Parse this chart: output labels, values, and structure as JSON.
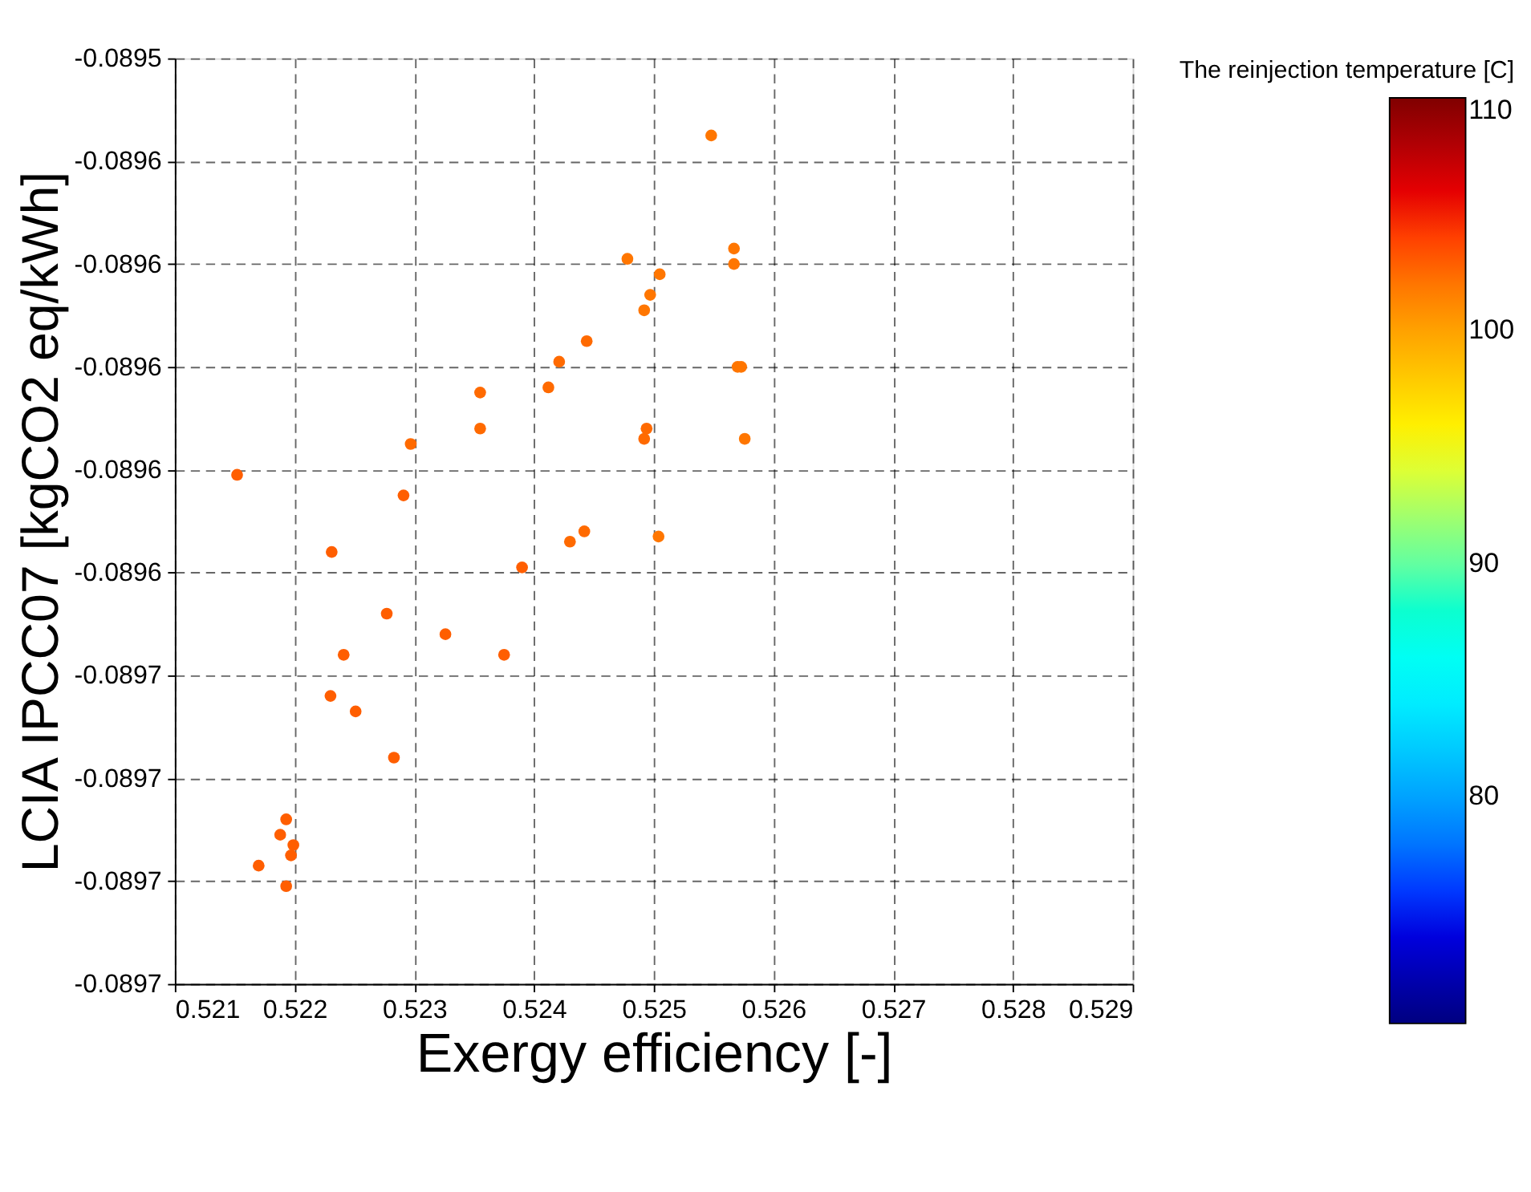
{
  "chart_data": {
    "type": "scatter",
    "xlabel": "Exergy efficiency [-]",
    "ylabel": "LCIA IPCC07 [kgCO2 eq/kWh]",
    "clabel": "The reinjection temperature [C]",
    "x": [
      0.52548,
      0.52567,
      0.52567,
      0.52478,
      0.52505,
      0.52497,
      0.52492,
      0.52444,
      0.52421,
      0.5257,
      0.52573,
      0.52412,
      0.52355,
      0.52355,
      0.52494,
      0.52492,
      0.52297,
      0.52576,
      0.52152,
      0.52291,
      0.52442,
      0.5243,
      0.52504,
      0.52231,
      0.5239,
      0.52277,
      0.52326,
      0.52375,
      0.52241,
      0.5223,
      0.52251,
      0.52283,
      0.52193,
      0.52188,
      0.52199,
      0.52197,
      0.5217,
      0.52193
    ],
    "values": [
      -0.089555,
      -0.089577,
      -0.08958,
      -0.089579,
      -0.089582,
      -0.089586,
      -0.089589,
      -0.089595,
      -0.089599,
      -0.0896,
      -0.0896,
      -0.089604,
      -0.089605,
      -0.089612,
      -0.089612,
      -0.089614,
      -0.089615,
      -0.089614,
      -0.089621,
      -0.089625,
      -0.089632,
      -0.089634,
      -0.089633,
      -0.089636,
      -0.089639,
      -0.089648,
      -0.089652,
      -0.089656,
      -0.089656,
      -0.089664,
      -0.089667,
      -0.089676,
      -0.089688,
      -0.089691,
      -0.089693,
      -0.089695,
      -0.089697,
      -0.089701
    ],
    "cvalues": [
      102,
      102,
      102,
      102,
      102,
      102,
      102,
      102.5,
      102.5,
      102,
      102,
      102.5,
      102.5,
      102.5,
      102.5,
      102.5,
      102.5,
      102,
      103,
      103,
      102.5,
      102.5,
      102,
      103,
      103,
      103,
      103,
      103,
      103,
      103,
      103,
      103,
      103,
      103,
      103,
      103,
      103,
      103
    ],
    "xlim": [
      0.521,
      0.529
    ],
    "xticks": [
      0.521,
      0.522,
      0.523,
      0.524,
      0.525,
      0.526,
      0.527,
      0.528,
      0.529
    ],
    "ylim": [
      -0.08972,
      -0.08954
    ],
    "yticks": [
      {
        "value": -0.08954,
        "label": "-0.0895"
      },
      {
        "value": -0.08956,
        "label": "-0.0896"
      },
      {
        "value": -0.08958,
        "label": "-0.0896"
      },
      {
        "value": -0.0896,
        "label": "-0.0896"
      },
      {
        "value": -0.08962,
        "label": "-0.0896"
      },
      {
        "value": -0.08964,
        "label": "-0.0896"
      },
      {
        "value": -0.08966,
        "label": "-0.0897"
      },
      {
        "value": -0.08968,
        "label": "-0.0897"
      },
      {
        "value": -0.0897,
        "label": "-0.0897"
      },
      {
        "value": -0.08972,
        "label": "-0.0897"
      }
    ],
    "clim": [
      70.3,
      110
    ],
    "cticks": [
      80,
      90,
      100,
      110
    ],
    "grid": true,
    "marker": "circle"
  }
}
